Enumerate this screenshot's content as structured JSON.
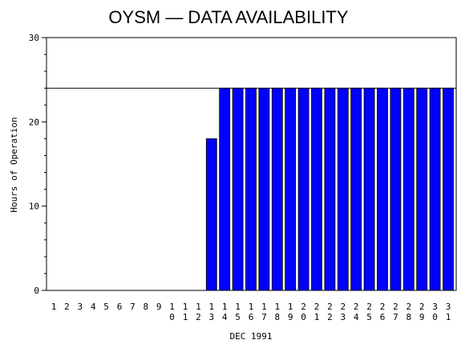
{
  "chart_data": {
    "type": "bar",
    "title": "OYSM — DATA AVAILABILITY",
    "xlabel": "DEC 1991",
    "ylabel": "Hours of Operation",
    "ylim": [
      0,
      30
    ],
    "yticks": [
      0,
      10,
      20,
      30
    ],
    "reference_line": 24,
    "bar_color": "#0000ff",
    "categories": [
      "1",
      "2",
      "3",
      "4",
      "5",
      "6",
      "7",
      "8",
      "9",
      "10",
      "11",
      "12",
      "13",
      "14",
      "15",
      "16",
      "17",
      "18",
      "19",
      "20",
      "21",
      "22",
      "23",
      "24",
      "25",
      "26",
      "27",
      "28",
      "29",
      "30",
      "31"
    ],
    "values": [
      0,
      0,
      0,
      0,
      0,
      0,
      0,
      0,
      0,
      0,
      0,
      0,
      18,
      24,
      24,
      24,
      24,
      24,
      24,
      24,
      24,
      24,
      24,
      24,
      24,
      24,
      24,
      24,
      24,
      24,
      24
    ]
  }
}
